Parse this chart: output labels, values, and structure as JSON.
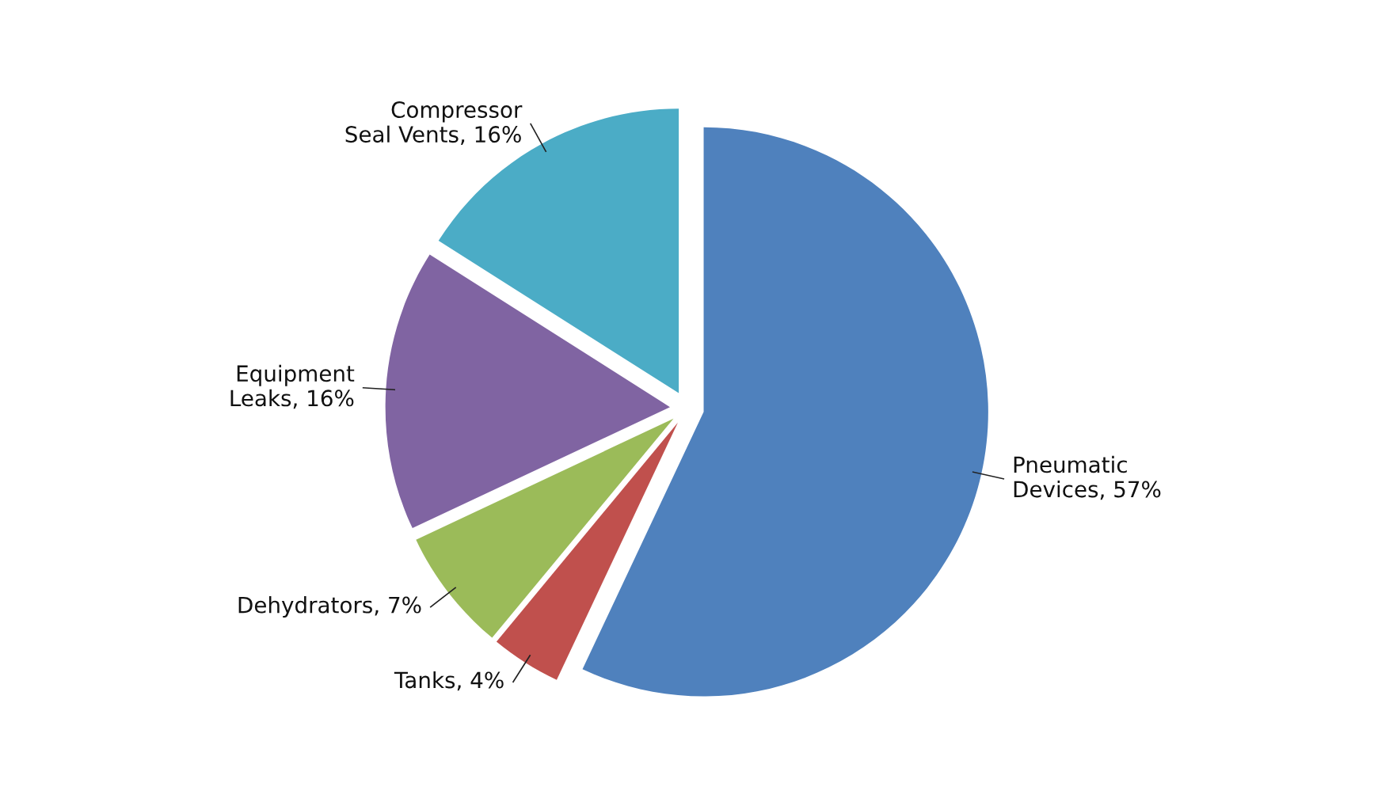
{
  "chart_data": {
    "type": "pie",
    "categories": [
      "Pneumatic\nDevices, 57%",
      "Tanks, 4%",
      "Dehydrators, 7%",
      "Equipment\nLeaks, 16%",
      "Compressor\nSeal Vents, 16%"
    ],
    "values": [
      57,
      4,
      7,
      16,
      16
    ],
    "colors": [
      "#4f81bd",
      "#c0504d",
      "#9bbb59",
      "#8064a2",
      "#4bacc6"
    ],
    "legend": false
  }
}
